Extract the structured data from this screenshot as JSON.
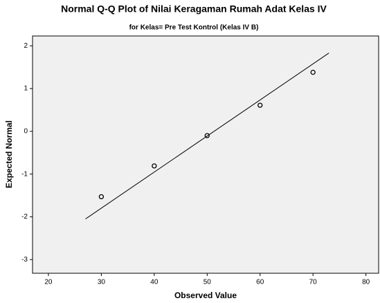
{
  "chart_data": {
    "type": "scatter",
    "title": "Normal Q-Q Plot of Nilai Keragaman Rumah Adat Kelas IV",
    "subtitle": "for Kelas= Pre Test Kontrol (Kelas IV B)",
    "x_label": "Observed Value",
    "y_label": "Expected Normal",
    "x": [
      30,
      40,
      50,
      60,
      70
    ],
    "values": [
      -1.53,
      -0.81,
      -0.1,
      0.61,
      1.38
    ],
    "color": "#000000",
    "reference_line": {
      "x": [
        27,
        73
      ],
      "y": [
        -2.05,
        1.83
      ]
    },
    "xlim": [
      17,
      82.4
    ],
    "ylim": [
      -3.32,
      2.23
    ],
    "xticks": [
      20,
      30,
      40,
      50,
      60,
      70,
      80
    ],
    "yticks": [
      -3,
      -2,
      -1,
      0,
      1,
      2
    ],
    "background": "#f0f0f0"
  }
}
